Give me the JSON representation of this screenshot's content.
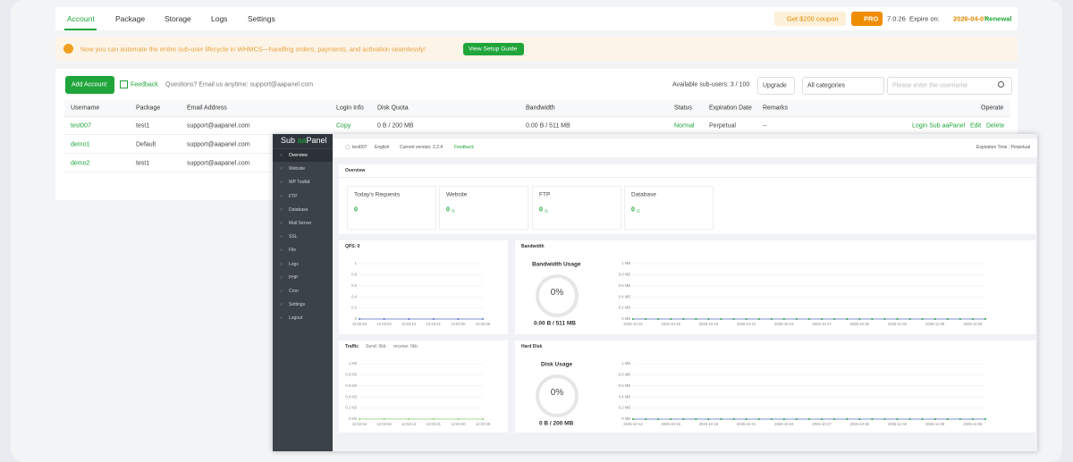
{
  "nav": {
    "tabs": [
      "Account",
      "Package",
      "Storage",
      "Logs",
      "Settings"
    ],
    "coupon": "Get $200 coupon",
    "pro": "PRO",
    "version": "7.0.26",
    "expire_label": "Expire on:",
    "expire_date": "2026-04-07",
    "renewal": "Renewal"
  },
  "banner": {
    "text": "Now you can automate the entire sub-user lifecycle in WHMCS—handling orders, payments, and activation seamlessly!",
    "button": "View Setup Guide"
  },
  "toolbar": {
    "add": "Add Account",
    "feedback": "Feedback",
    "questions": "Questions? Email us anytime: support@aapanel.com",
    "available": "Available sub-users: 3 / 100",
    "upgrade": "Upgrade",
    "category": "All categories",
    "search_placeholder": "Please enter the username"
  },
  "table": {
    "headers": [
      "Username",
      "Package",
      "Email Address",
      "Login Info",
      "Disk Quota",
      "Bandwidth",
      "Status",
      "Expiration Date",
      "Remarks",
      "Operate"
    ],
    "rows": [
      [
        "test007",
        "test1",
        "support@aapanel.com",
        "Copy",
        "0 B / 200 MB",
        "0.00 B / 511 MB",
        "Normal",
        "Perpetual",
        "--"
      ],
      [
        "demo1",
        "Default",
        "support@aapanel.com"
      ],
      [
        "demo2",
        "test1",
        "support@aapanel.com"
      ]
    ],
    "operate": [
      "Login Sub aaPanel",
      "Edit",
      "Delete"
    ]
  },
  "panel": {
    "brand": [
      "Sub",
      "aa",
      "Panel"
    ],
    "menu": [
      "Overview",
      "Website",
      "WP Toolkit",
      "FTP",
      "Database",
      "Mail Server",
      "SSL",
      "File",
      "Logs",
      "PHP",
      "Cron",
      "Settings",
      "Logout"
    ],
    "topbar": {
      "user": "test007",
      "language": "English",
      "version": "Current version: 2.2.4",
      "feedback": "Feedback",
      "expiration": "Expiration Time : Perpetual"
    },
    "overview": {
      "title": "Overview",
      "stats": [
        {
          "label": "Today's Requests",
          "value": "0"
        },
        {
          "label": "Website",
          "value": "0",
          "total": "/1"
        },
        {
          "label": "FTP",
          "value": "0",
          "total": "/1"
        },
        {
          "label": "Database",
          "value": "0",
          "total": "/2"
        }
      ]
    },
    "qps": {
      "type": "line",
      "title": "QPS: 0",
      "categories": [
        "12:02:54",
        "12:03:03",
        "12:03:12",
        "12:03:21",
        "12:03:30",
        "12:03:39"
      ],
      "values": [
        0,
        0,
        0,
        0,
        0,
        0
      ],
      "ylim": [
        0,
        1
      ],
      "yticks": [
        0,
        0.2,
        0.4,
        0.6,
        0.8,
        1
      ],
      "color": "#5470c6",
      "grid": true
    },
    "traffic": {
      "type": "line",
      "title": "Traffic",
      "send": "Send: 0kb",
      "receive": "receive: 0kb",
      "categories": [
        "12:02:54",
        "12:03:03",
        "12:03:12",
        "12:03:21",
        "12:03:30",
        "12:03:39"
      ],
      "values": [
        0,
        0,
        0,
        0,
        0,
        0
      ],
      "ylim": [
        0,
        1
      ],
      "yticks": [
        {
          "value": 0,
          "label": "0 KB"
        },
        {
          "value": 0.2,
          "label": "0.2 KB"
        },
        {
          "value": 0.4,
          "label": "0.4 KB"
        },
        {
          "value": 0.6,
          "label": "0.6 KB"
        },
        {
          "value": 0.8,
          "label": "0.8 KB"
        },
        {
          "value": 1,
          "label": "1 KB"
        }
      ],
      "color": "#91cc75",
      "grid": true
    },
    "bandwidth": {
      "type": "line",
      "title": "Bandwidth",
      "usage_title": "Bandwidth Usage",
      "usage_percent": "0%",
      "usage_text": "0.00 B / 511 MB",
      "categories": [
        "2025-10-12",
        null,
        null,
        "2025-10-15",
        null,
        null,
        "2025-10-18",
        null,
        null,
        "2025-10-21",
        null,
        null,
        "2025-10-24",
        null,
        null,
        "2025-10-27",
        null,
        null,
        "2025-10-30",
        null,
        null,
        "2025-11-02",
        null,
        null,
        "2025-11-05",
        null,
        null,
        "2025-11-08",
        null
      ],
      "values": [
        0,
        0,
        0,
        0,
        0,
        0,
        0,
        0,
        0,
        0,
        0,
        0,
        0,
        0,
        0,
        0,
        0,
        0,
        0,
        0,
        0,
        0,
        0,
        0,
        0,
        0,
        0,
        0,
        0
      ],
      "ylim": [
        0,
        1
      ],
      "yticks": [
        {
          "value": 0,
          "label": "0 MB"
        },
        {
          "value": 0.2,
          "label": "0.2 MB"
        },
        {
          "value": 0.4,
          "label": "0.4 MB"
        },
        {
          "value": 0.6,
          "label": "0.6 MB"
        },
        {
          "value": 0.8,
          "label": "0.8 MB"
        },
        {
          "value": 1,
          "label": "1 MB"
        }
      ],
      "color": "#5470c6",
      "marker_color": "#20a53a",
      "grid": true
    },
    "disk": {
      "type": "line",
      "title": "Hard Disk",
      "usage_title": "Disk Usage",
      "usage_percent": "0%",
      "usage_text": "0 B / 200 MB",
      "categories": [
        "2025-10-12",
        null,
        null,
        "2025-10-15",
        null,
        null,
        "2025-10-18",
        null,
        null,
        "2025-10-21",
        null,
        null,
        "2025-10-24",
        null,
        null,
        "2025-10-27",
        null,
        null,
        "2025-10-30",
        null,
        null,
        "2025-11-02",
        null,
        null,
        "2025-11-05",
        null,
        null,
        "2025-11-08",
        null
      ],
      "values": [
        0,
        0,
        0,
        0,
        0,
        0,
        0,
        0,
        0,
        0,
        0,
        0,
        0,
        0,
        0,
        0,
        0,
        0,
        0,
        0,
        0,
        0,
        0,
        0,
        0,
        0,
        0,
        0,
        0
      ],
      "ylim": [
        0,
        1
      ],
      "yticks": [
        {
          "value": 0,
          "label": "0 MB"
        },
        {
          "value": 0.2,
          "label": "0.2 MB"
        },
        {
          "value": 0.4,
          "label": "0.4 MB"
        },
        {
          "value": 0.6,
          "label": "0.6 MB"
        },
        {
          "value": 0.8,
          "label": "0.8 MB"
        },
        {
          "value": 1,
          "label": "1 MB"
        }
      ],
      "color": "#5470c6",
      "marker_color": "#20a53a",
      "grid": true
    }
  }
}
